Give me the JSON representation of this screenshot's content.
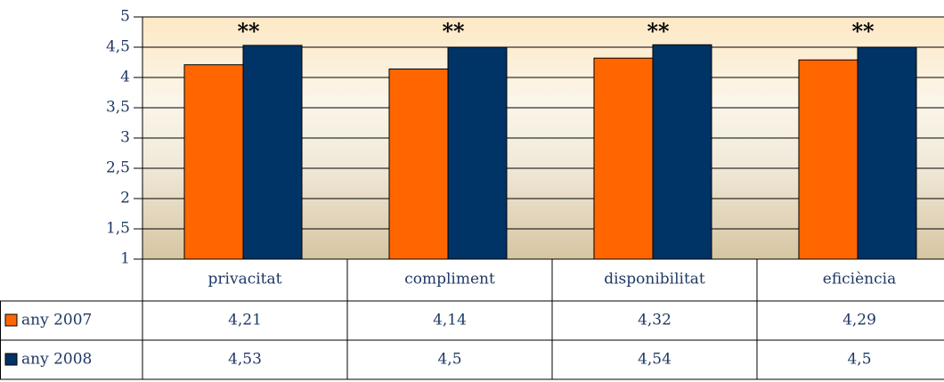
{
  "chart_data": {
    "type": "bar",
    "categories": [
      "privacitat",
      "compliment",
      "disponibilitat",
      "eficiència"
    ],
    "series": [
      {
        "name": "any 2007",
        "color": "#ff6600",
        "values": [
          4.21,
          4.14,
          4.32,
          4.29
        ],
        "value_labels": [
          "4,21",
          "4,14",
          "4,32",
          "4,29"
        ]
      },
      {
        "name": "any 2008",
        "color": "#003366",
        "values": [
          4.53,
          4.5,
          4.54,
          4.5
        ],
        "value_labels": [
          "4,53",
          "4,5",
          "4,54",
          "4,5"
        ]
      }
    ],
    "annotations": [
      "**",
      "**",
      "**",
      "**"
    ],
    "ylim": [
      1,
      5
    ],
    "yticks": [
      1,
      {
        "value": 1.5,
        "label": "1,5"
      },
      2,
      {
        "value": 2.5,
        "label": "2,5"
      },
      3,
      {
        "value": 3.5,
        "label": "3,5"
      },
      4,
      {
        "value": 4.5,
        "label": "4,5"
      },
      5
    ],
    "grid": true
  }
}
